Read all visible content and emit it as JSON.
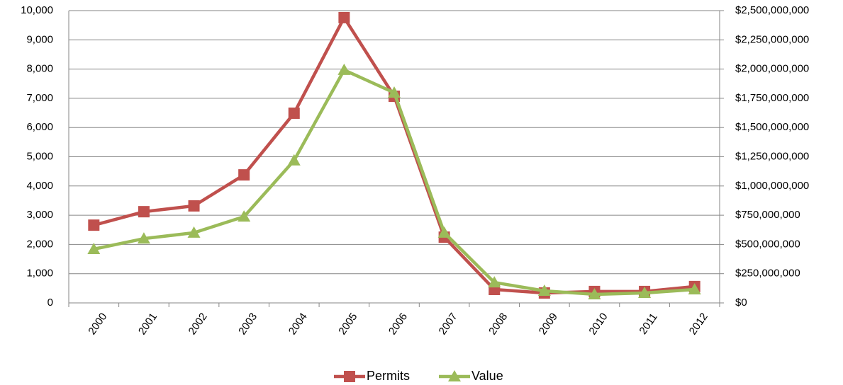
{
  "chart_data": {
    "type": "line",
    "categories": [
      "2000",
      "2001",
      "2002",
      "2003",
      "2004",
      "2005",
      "2006",
      "2007",
      "2008",
      "2009",
      "2010",
      "2011",
      "2012"
    ],
    "series": [
      {
        "name": "Permits",
        "color": "#c0504d",
        "marker": "square",
        "values": [
          2660,
          3120,
          3320,
          4380,
          6490,
          9760,
          7070,
          2250,
          460,
          340,
          390,
          390,
          560
        ]
      },
      {
        "name": "Value",
        "color": "#9bbb59",
        "marker": "triangle",
        "axis": "y2",
        "values": [
          460000000,
          550000000,
          600000000,
          738000000,
          1218000000,
          1992000000,
          1798000000,
          600000000,
          175000000,
          103000000,
          73000000,
          85000000,
          115000000
        ]
      }
    ],
    "ylim": [
      0,
      10000
    ],
    "yticks": [
      0,
      {
        "value": 1000,
        "label": "1,000"
      },
      {
        "value": 2000,
        "label": "2,000"
      },
      {
        "value": 3000,
        "label": "3,000"
      },
      {
        "value": 4000,
        "label": "4,000"
      },
      {
        "value": 5000,
        "label": "5,000"
      },
      {
        "value": 6000,
        "label": "6,000"
      },
      {
        "value": 7000,
        "label": "7,000"
      },
      {
        "value": 8000,
        "label": "8,000"
      },
      {
        "value": 9000,
        "label": "9,000"
      },
      {
        "value": 10000,
        "label": "10,000"
      }
    ],
    "y2lim": [
      0,
      2500000000
    ],
    "y2ticks": [
      {
        "value": 0,
        "label": "$0"
      },
      {
        "value": 250000000,
        "label": "$250,000,000"
      },
      {
        "value": 500000000,
        "label": "$500,000,000"
      },
      {
        "value": 750000000,
        "label": "$750,000,000"
      },
      {
        "value": 1000000000,
        "label": "$1,000,000,000"
      },
      {
        "value": 1250000000,
        "label": "$1,250,000,000"
      },
      {
        "value": 1500000000,
        "label": "$1,500,000,000"
      },
      {
        "value": 1750000000,
        "label": "$1,750,000,000"
      },
      {
        "value": 2000000000,
        "label": "$2,000,000,000"
      },
      {
        "value": 2250000000,
        "label": "$2,250,000,000"
      },
      {
        "value": 2500000000,
        "label": "$2,500,000,000"
      }
    ],
    "grid": true,
    "legend": "bottom"
  }
}
